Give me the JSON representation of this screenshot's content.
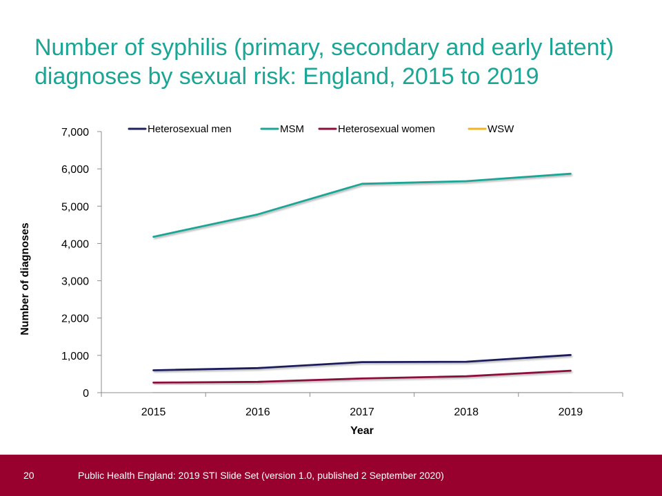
{
  "slide": {
    "title_line1": "Number of syphilis (primary, secondary and early latent)",
    "title_line2": "diagnoses by sexual risk: England, 2015 to 2019",
    "page_number": "20",
    "footer": "Public Health England: 2019 STI Slide Set (version 1.0, published 2 September 2020)"
  },
  "colors": {
    "title": "#1aa595",
    "footer_bg": "#98002e"
  },
  "chart_data": {
    "type": "line",
    "title": "",
    "xlabel": "Year",
    "ylabel": "Number of diagnoses",
    "x": [
      "2015",
      "2016",
      "2017",
      "2018",
      "2019"
    ],
    "ylim": [
      0,
      7000
    ],
    "yticks": [
      0,
      1000,
      2000,
      3000,
      4000,
      5000,
      6000,
      7000
    ],
    "ytick_labels": [
      "0",
      "1,000",
      "2,000",
      "3,000",
      "4,000",
      "5,000",
      "6,000",
      "7,000"
    ],
    "grid": false,
    "legend_position": "top",
    "series": [
      {
        "name": "Heterosexual men",
        "color": "#1f1f5c",
        "values": [
          600,
          660,
          820,
          830,
          1010
        ]
      },
      {
        "name": "MSM",
        "color": "#1aa595",
        "values": [
          4180,
          4780,
          5600,
          5670,
          5870
        ]
      },
      {
        "name": "Heterosexual women",
        "color": "#8b0e3a",
        "values": [
          270,
          290,
          380,
          440,
          590
        ]
      },
      {
        "name": "WSW",
        "color": "#f0b323",
        "values": [
          5,
          5,
          5,
          5,
          10
        ]
      }
    ]
  }
}
